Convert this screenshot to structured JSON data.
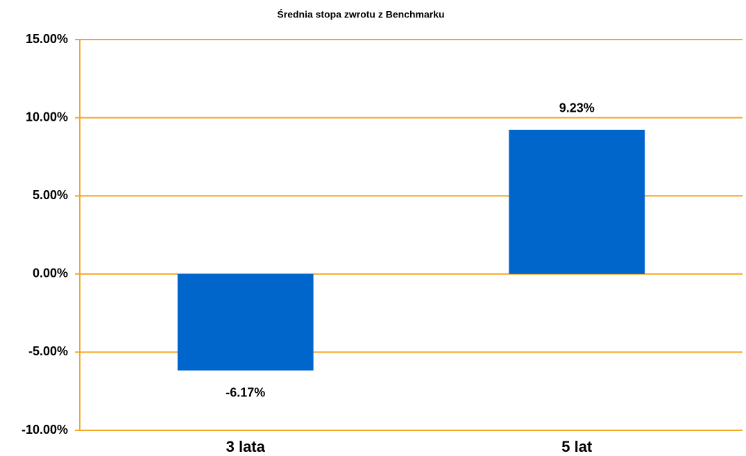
{
  "chart_data": {
    "type": "bar",
    "title": "Średnia stopa zwrotu z Benchmarku",
    "categories": [
      "3 lata",
      "5 lat"
    ],
    "values": [
      -6.17,
      9.23
    ],
    "value_labels": [
      "-6.17%",
      "9.23%"
    ],
    "color": "#0066cc",
    "ylim": [
      -10,
      15
    ],
    "yticks": [
      {
        "value": -10,
        "label": "-10.00%"
      },
      {
        "value": -5,
        "label": "-5.00%"
      },
      {
        "value": 0,
        "label": "0.00%"
      },
      {
        "value": 5,
        "label": "5.00%"
      },
      {
        "value": 10,
        "label": "10.00%"
      },
      {
        "value": 15,
        "label": "15.00%"
      }
    ],
    "grid": true
  }
}
